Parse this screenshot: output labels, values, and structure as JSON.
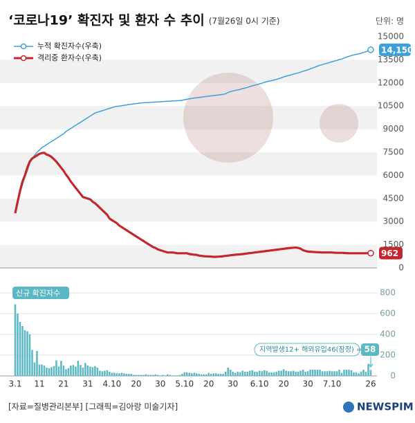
{
  "chart_data": [
    {
      "type": "line",
      "title": "‘코로나19’ 확진자 및 환자 수 추이",
      "subtitle": "(7월26일 0시 기준)",
      "unit": "단위: 명",
      "ylim": [
        0,
        15000
      ],
      "yticks": [
        0,
        1500,
        3000,
        4500,
        6000,
        7500,
        9000,
        10500,
        12000,
        13500,
        15000
      ],
      "grid": true,
      "legend": "top-left",
      "series": [
        {
          "name": "누적 확진자수(우축)",
          "color": "#3d9fd8",
          "values": [
            3550,
            4300,
            4900,
            5400,
            5900,
            6300,
            6800,
            7100,
            7300,
            7500,
            7650,
            7800,
            7900,
            8000,
            8100,
            8200,
            8300,
            8400,
            8500,
            8600,
            8700,
            8850,
            8950,
            9050,
            9150,
            9250,
            9350,
            9450,
            9550,
            9650,
            9750,
            9850,
            9950,
            10050,
            10100,
            10150,
            10200,
            10250,
            10300,
            10350,
            10400,
            10450,
            10480,
            10500,
            10520,
            10550,
            10570,
            10600,
            10620,
            10640,
            10660,
            10680,
            10700,
            10710,
            10720,
            10730,
            10740,
            10750,
            10760,
            10770,
            10780,
            10790,
            10800,
            10810,
            10820,
            10830,
            10840,
            10850,
            10860,
            10880,
            10910,
            10940,
            10970,
            11000,
            11020,
            11040,
            11060,
            11080,
            11100,
            11120,
            11140,
            11160,
            11180,
            11200,
            11220,
            11240,
            11260,
            11300,
            11380,
            11440,
            11480,
            11510,
            11550,
            11580,
            11630,
            11670,
            11710,
            11760,
            11810,
            11850,
            11890,
            11940,
            11980,
            12030,
            12080,
            12120,
            12150,
            12190,
            12230,
            12280,
            12330,
            12390,
            12440,
            12480,
            12520,
            12570,
            12610,
            12650,
            12700,
            12760,
            12800,
            12850,
            12910,
            12970,
            13030,
            13090,
            13150,
            13190,
            13240,
            13280,
            13330,
            13380,
            13420,
            13460,
            13520,
            13550,
            13610,
            13670,
            13730,
            13780,
            13820,
            13850,
            13880,
            13920,
            13980,
            14020,
            14090,
            14150
          ],
          "value_labels": [
            null,
            null,
            null,
            null,
            null,
            null,
            null,
            null,
            null,
            null,
            null,
            null,
            null,
            null,
            null,
            null,
            null,
            null,
            null,
            null,
            null,
            null,
            null,
            null,
            null,
            null,
            null,
            null,
            null,
            null,
            null,
            null,
            null,
            null,
            null,
            null,
            null,
            null,
            null,
            null,
            null,
            null,
            null,
            null,
            null,
            null,
            null,
            null,
            null,
            null,
            null,
            null,
            null,
            null,
            null,
            null,
            null,
            null,
            null,
            null,
            null,
            null,
            null,
            null,
            null,
            null,
            null,
            null,
            null,
            null,
            null,
            null,
            null,
            null,
            null,
            null,
            null,
            null,
            null,
            null,
            null,
            null,
            null,
            null,
            null,
            null,
            null,
            null,
            null,
            null,
            null,
            null,
            null,
            null,
            null,
            null,
            null,
            null,
            null,
            null,
            null,
            null,
            null,
            null,
            null,
            null,
            null,
            null,
            null,
            null,
            null,
            null,
            null,
            null,
            null,
            null,
            null,
            null,
            null,
            null,
            null,
            null,
            null,
            null,
            null,
            null,
            null,
            null,
            null,
            null,
            null,
            null,
            null,
            null,
            null,
            null,
            null,
            null,
            null,
            null,
            null,
            null,
            null,
            null,
            null,
            null,
            null,
            "14,150"
          ]
        },
        {
          "name": "격리중 환자수(우축)",
          "color": "#c1272d",
          "values": [
            3550,
            4300,
            5000,
            5600,
            6000,
            6500,
            6900,
            7100,
            7200,
            7300,
            7400,
            7450,
            7470,
            7350,
            7300,
            7200,
            7050,
            6900,
            6700,
            6500,
            6300,
            6050,
            5850,
            5600,
            5400,
            5200,
            5000,
            4800,
            4600,
            4550,
            4500,
            4450,
            4300,
            4200,
            4050,
            3900,
            3750,
            3600,
            3450,
            3200,
            3100,
            3000,
            2900,
            2750,
            2650,
            2550,
            2450,
            2350,
            2250,
            2150,
            2050,
            1950,
            1850,
            1750,
            1650,
            1550,
            1450,
            1350,
            1300,
            1200,
            1150,
            1100,
            1050,
            1000,
            1000,
            1000,
            980,
            950,
            950,
            950,
            950,
            950,
            900,
            880,
            860,
            850,
            800,
            780,
            760,
            750,
            740,
            730,
            720,
            720,
            730,
            740,
            760,
            780,
            800,
            820,
            840,
            860,
            870,
            880,
            900,
            920,
            940,
            960,
            980,
            1000,
            1020,
            1040,
            1060,
            1080,
            1100,
            1120,
            1140,
            1160,
            1180,
            1200,
            1220,
            1240,
            1260,
            1280,
            1300,
            1310,
            1320,
            1300,
            1250,
            1150,
            1100,
            1060,
            1050,
            1040,
            1030,
            1020,
            1010,
            1000,
            1000,
            1000,
            1000,
            1000,
            990,
            980,
            980,
            980,
            970,
            960,
            950,
            950,
            950,
            950,
            950,
            950,
            950,
            950,
            955,
            962
          ]
        }
      ]
    },
    {
      "type": "bar",
      "title": "신규 확진자수",
      "color": "#5bb7c3",
      "ylim": [
        0,
        800
      ],
      "yticks": [
        0,
        200,
        400,
        600,
        800
      ],
      "annotation": "지역발생12+ 해외유입46(잠정) =",
      "categories": [
        "3.1",
        null,
        null,
        null,
        null,
        null,
        null,
        null,
        null,
        null,
        "11",
        null,
        null,
        null,
        null,
        null,
        null,
        null,
        null,
        null,
        "21",
        null,
        null,
        null,
        null,
        null,
        null,
        null,
        null,
        null,
        "31",
        null,
        null,
        null,
        null,
        null,
        null,
        null,
        null,
        null,
        "4.10",
        null,
        null,
        null,
        null,
        null,
        null,
        null,
        null,
        null,
        "20",
        null,
        null,
        null,
        null,
        null,
        null,
        null,
        null,
        null,
        "30",
        null,
        null,
        null,
        null,
        null,
        null,
        null,
        null,
        null,
        "5.10",
        null,
        null,
        null,
        null,
        null,
        null,
        null,
        null,
        null,
        "20",
        null,
        null,
        null,
        null,
        null,
        null,
        null,
        null,
        null,
        "30",
        null,
        null,
        null,
        null,
        null,
        null,
        null,
        null,
        null,
        null,
        "6.10",
        null,
        null,
        null,
        null,
        null,
        null,
        null,
        null,
        null,
        "20",
        null,
        null,
        null,
        null,
        null,
        null,
        null,
        null,
        null,
        "30",
        null,
        null,
        null,
        null,
        null,
        null,
        null,
        null,
        null,
        "7.10",
        null,
        null,
        null,
        null,
        null,
        null,
        null,
        null,
        null,
        null,
        null,
        null,
        null,
        null,
        null,
        "26"
      ],
      "values": [
        690,
        600,
        520,
        480,
        440,
        430,
        400,
        250,
        130,
        240,
        110,
        110,
        100,
        80,
        75,
        85,
        95,
        150,
        90,
        145,
        100,
        65,
        75,
        100,
        105,
        90,
        145,
        105,
        80,
        125,
        100,
        90,
        85,
        95,
        80,
        50,
        45,
        50,
        55,
        40,
        30,
        30,
        25,
        25,
        30,
        25,
        20,
        20,
        20,
        10,
        10,
        10,
        10,
        10,
        15,
        10,
        10,
        10,
        15,
        10,
        5,
        10,
        5,
        15,
        10,
        5,
        5,
        5,
        10,
        20,
        35,
        35,
        30,
        25,
        30,
        25,
        20,
        15,
        15,
        15,
        30,
        20,
        25,
        25,
        20,
        20,
        20,
        40,
        80,
        60,
        40,
        30,
        40,
        35,
        50,
        40,
        40,
        50,
        55,
        40,
        40,
        50,
        45,
        55,
        50,
        35,
        35,
        35,
        40,
        50,
        50,
        65,
        50,
        45,
        45,
        50,
        40,
        40,
        50,
        60,
        40,
        45,
        60,
        60,
        60,
        60,
        60,
        45,
        45,
        45,
        50,
        45,
        45,
        45,
        60,
        30,
        60,
        60,
        60,
        55,
        35,
        35,
        25,
        40,
        60,
        40,
        115,
        58
      ]
    }
  ],
  "footer": {
    "source": "[자료=질병관리본부] [그래픽=김아랑 미술기자]",
    "logo": "NEWSPIM"
  }
}
